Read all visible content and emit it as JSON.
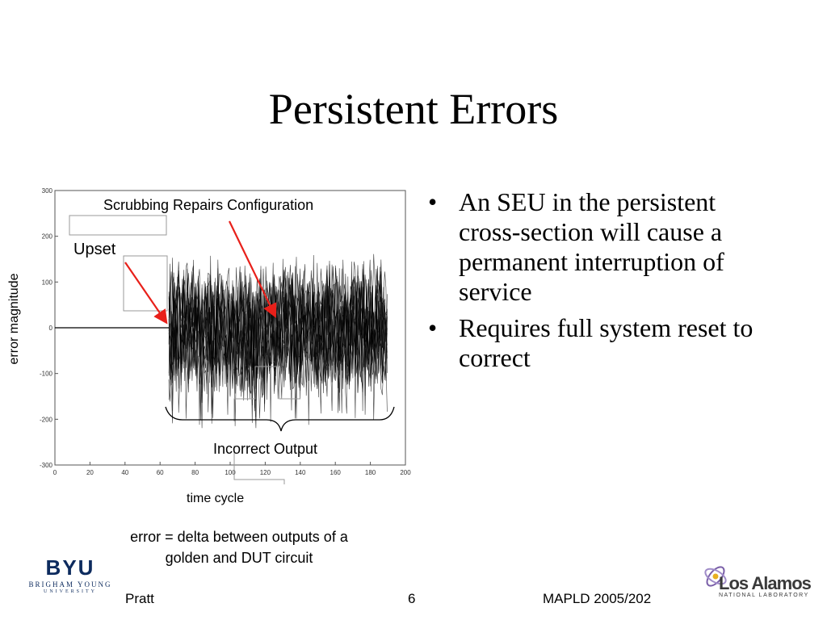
{
  "slide": {
    "title": "Persistent Errors",
    "bullets": [
      "An SEU in the persistent cross-section will cause a permanent interruption of service",
      "Requires full system reset to correct"
    ],
    "caption_line1": "error = delta between outputs of a",
    "caption_line2": "golden and DUT circuit",
    "footer": {
      "left": "Pratt",
      "center": "6",
      "right": "MAPLD 2005/202"
    },
    "logos": {
      "byu_main": "BYU",
      "byu_sub": "BRIGHAM YOUNG",
      "byu_sub2": "UNIVERSITY",
      "lanl_name": "Los Alamos",
      "lanl_sub": "NATIONAL LABORATORY"
    }
  },
  "chart_data": {
    "type": "line",
    "xlabel": "time cycle",
    "ylabel": "error magnitude",
    "xlim": [
      0,
      200
    ],
    "ylim": [
      -300,
      300
    ],
    "xticks": [
      0,
      20,
      40,
      60,
      80,
      100,
      120,
      140,
      160,
      180,
      200
    ],
    "yticks": [
      300,
      200,
      100,
      0,
      -100,
      -200,
      -300
    ],
    "annotations": {
      "scrubbing": "Scrubbing Repairs Configuration",
      "upset": "Upset",
      "incorrect": "Incorrect Output"
    },
    "upset_cycle": 65,
    "end_cycle": 190,
    "noise_envelope": [
      -150,
      150
    ],
    "arrow_color": "#e8201a",
    "line_color": "#000000"
  }
}
